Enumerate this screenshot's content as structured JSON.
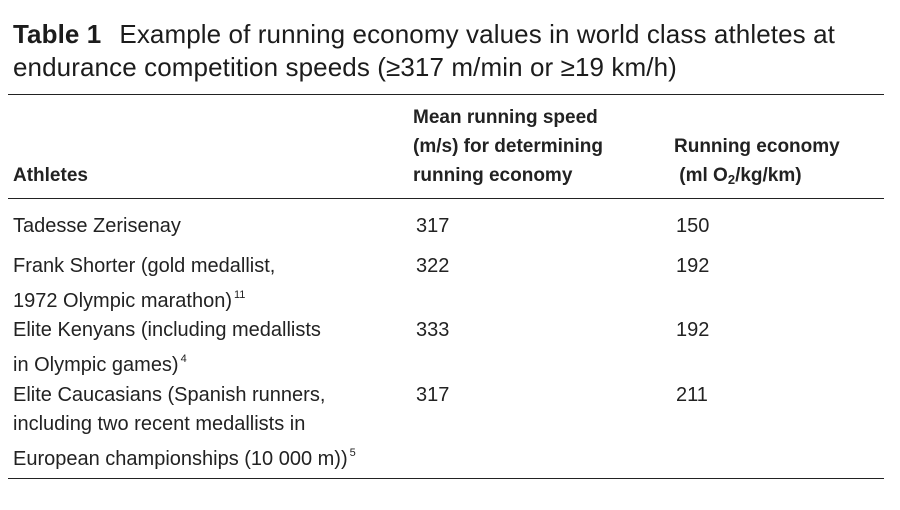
{
  "caption": {
    "label": "Table 1",
    "text": "Example of running economy values in world class athletes at endurance competition speeds (≥317 m/min or ≥19 km/h)"
  },
  "headers": {
    "athletes": "Athletes",
    "speed_line1": "Mean running speed",
    "speed_line2": "(m/s) for determining",
    "speed_line3": "running economy",
    "economy_line1": "Running economy",
    "economy_pre": "(ml O",
    "economy_sub": "2",
    "economy_post": "/kg/km)"
  },
  "rows": [
    {
      "athlete_lines": [
        "Tadesse Zerisenay"
      ],
      "ref": "",
      "speed": "317",
      "economy": "150"
    },
    {
      "athlete_lines": [
        "Frank Shorter (gold medallist,",
        "1972 Olympic marathon)"
      ],
      "ref": "11",
      "speed": "322",
      "economy": "192"
    },
    {
      "athlete_lines": [
        "Elite Kenyans (including medallists",
        "in Olympic games)"
      ],
      "ref": "4",
      "speed": "333",
      "economy": "192"
    },
    {
      "athlete_lines": [
        "Elite Caucasians (Spanish runners,",
        "including two recent medallists in",
        "European championships (10 000 m))"
      ],
      "ref": "5",
      "speed": "317",
      "economy": "211"
    }
  ]
}
